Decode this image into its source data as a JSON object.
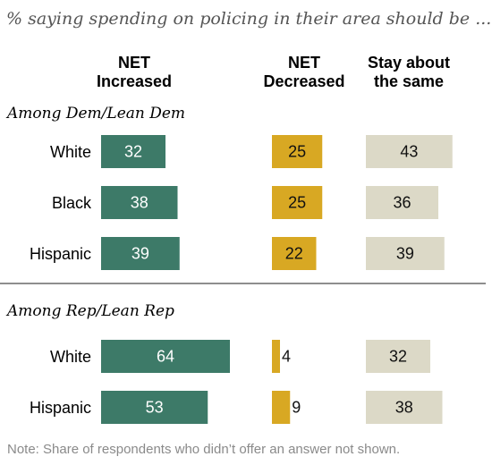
{
  "subtitle": "% saying spending on policing in their area should be ...",
  "note": "Note: Share of respondents who didn’t offer an answer not shown.",
  "colors": {
    "increased": "#3d7a68",
    "decreased": "#d8a823",
    "same": "#dcd9c7"
  },
  "chart_data": {
    "type": "bar",
    "columns": [
      "NET\nIncreased",
      "NET\nDecreased",
      "Stay about\nthe same"
    ],
    "groups": [
      {
        "label": "Among Dem/Lean Dem",
        "rows": [
          {
            "name": "White",
            "values": [
              32,
              25,
              43
            ]
          },
          {
            "name": "Black",
            "values": [
              38,
              25,
              36
            ]
          },
          {
            "name": "Hispanic",
            "values": [
              39,
              22,
              39
            ]
          }
        ]
      },
      {
        "label": "Among Rep/Lean Rep",
        "rows": [
          {
            "name": "White",
            "values": [
              64,
              4,
              32
            ]
          },
          {
            "name": "Hispanic",
            "values": [
              53,
              9,
              38
            ]
          }
        ]
      }
    ]
  }
}
